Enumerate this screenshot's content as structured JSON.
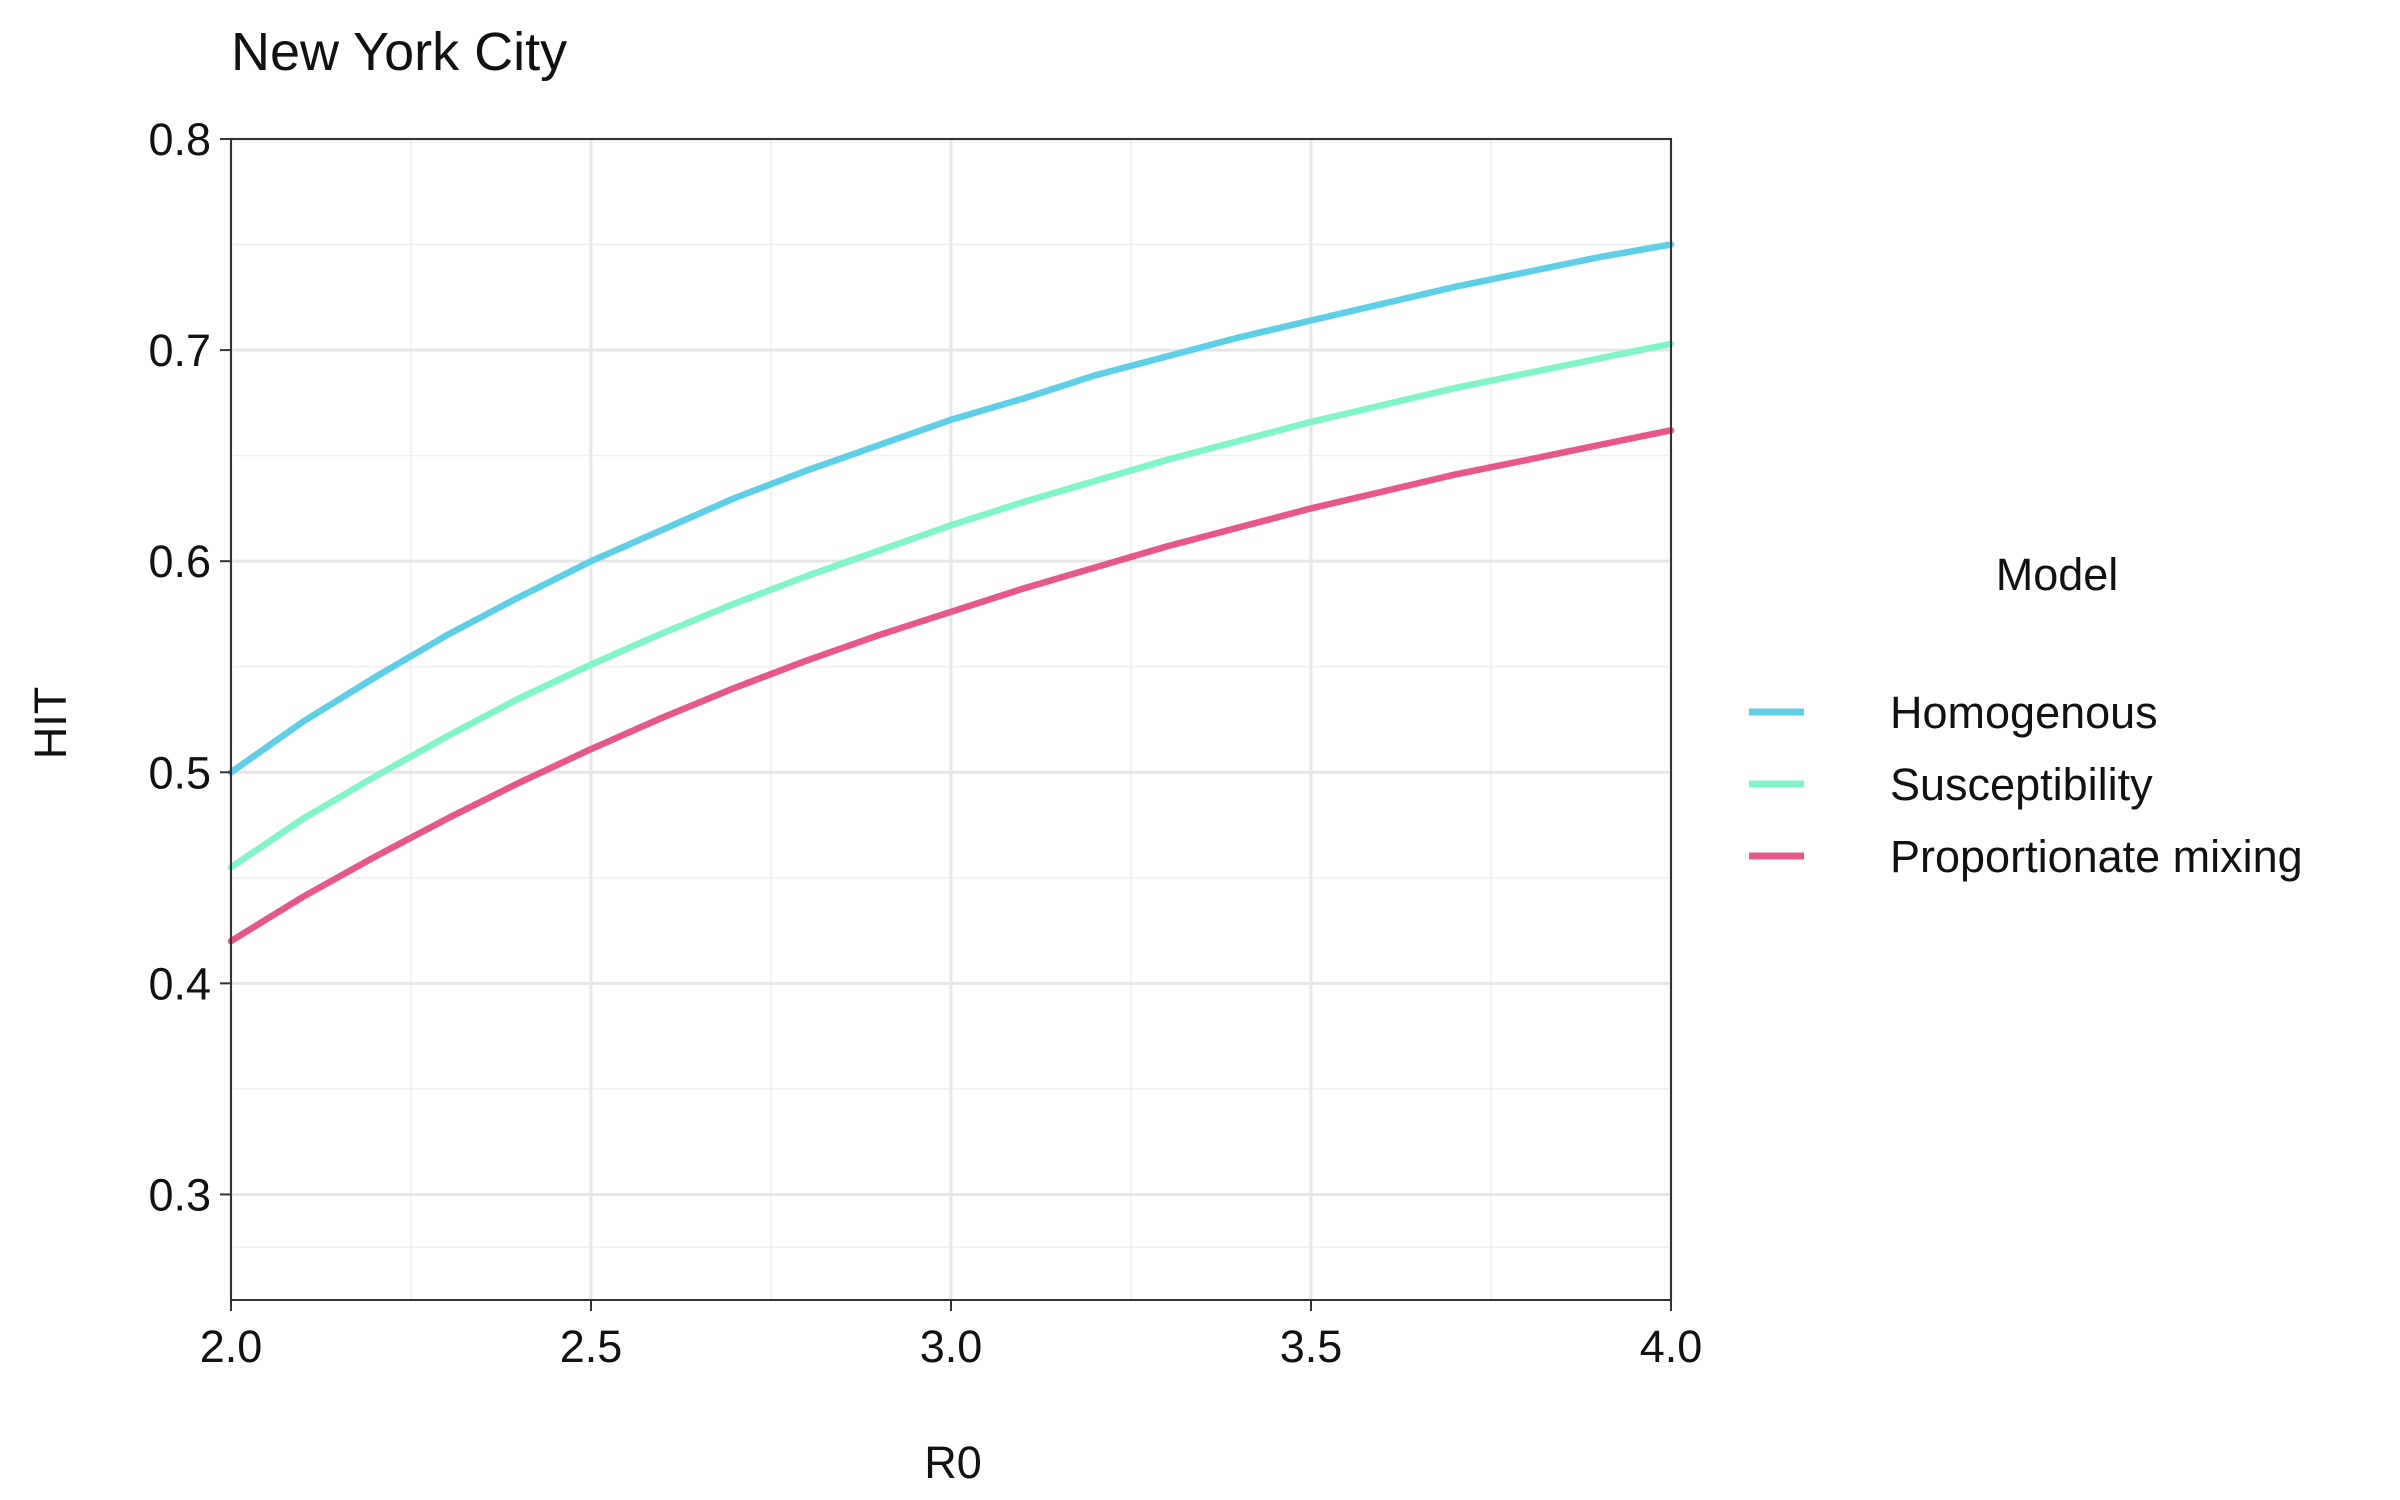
{
  "chart_data": {
    "type": "line",
    "title": "New York City",
    "xlabel": "R0",
    "ylabel": "HIT",
    "xlim": [
      2.0,
      4.0
    ],
    "ylim": [
      0.25,
      0.8
    ],
    "x_ticks": [
      2.0,
      2.5,
      3.0,
      3.5,
      4.0
    ],
    "x_tick_labels": [
      "2.0",
      "2.5",
      "3.0",
      "3.5",
      "4.0"
    ],
    "y_ticks": [
      0.3,
      0.4,
      0.5,
      0.6,
      0.7,
      0.8
    ],
    "y_tick_labels": [
      "0.3",
      "0.4",
      "0.5",
      "0.6",
      "0.7",
      "0.8"
    ],
    "grid": true,
    "legend": {
      "title": "Model",
      "position": "right"
    },
    "x": [
      2.0,
      2.1,
      2.2,
      2.3,
      2.4,
      2.5,
      2.6,
      2.7,
      2.8,
      2.9,
      3.0,
      3.1,
      3.2,
      3.3,
      3.4,
      3.5,
      3.6,
      3.7,
      3.8,
      3.9,
      4.0
    ],
    "series": [
      {
        "name": "Homogenous",
        "color": "#5ecfe8",
        "values": [
          0.5,
          0.524,
          0.545,
          0.565,
          0.583,
          0.6,
          0.615,
          0.63,
          0.643,
          0.655,
          0.667,
          0.677,
          0.688,
          0.697,
          0.706,
          0.714,
          0.722,
          0.73,
          0.737,
          0.744,
          0.75
        ]
      },
      {
        "name": "Susceptibility",
        "color": "#7ff5c8",
        "values": [
          0.455,
          0.478,
          0.498,
          0.517,
          0.535,
          0.551,
          0.566,
          0.58,
          0.593,
          0.605,
          0.617,
          0.628,
          0.638,
          0.648,
          0.657,
          0.666,
          0.674,
          0.682,
          0.689,
          0.696,
          0.703
        ]
      },
      {
        "name": "Proportionate mixing",
        "color": "#e8578a",
        "values": [
          0.42,
          0.441,
          0.46,
          0.478,
          0.495,
          0.511,
          0.526,
          0.54,
          0.553,
          0.565,
          0.576,
          0.587,
          0.597,
          0.607,
          0.616,
          0.625,
          0.633,
          0.641,
          0.648,
          0.655,
          0.662
        ]
      }
    ]
  }
}
